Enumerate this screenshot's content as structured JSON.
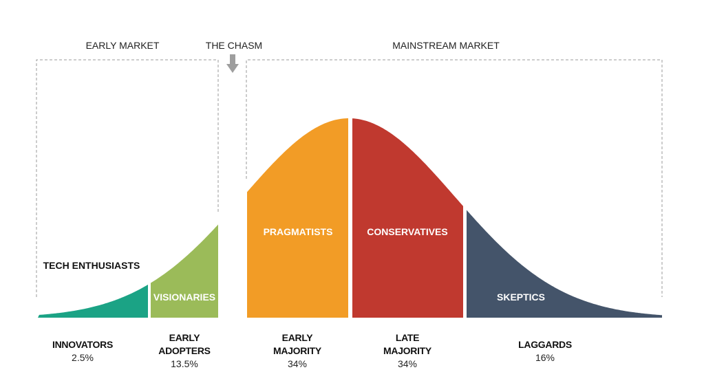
{
  "markets": {
    "early": "EARLY MARKET",
    "chasm": "THE CHASM",
    "mainstream": "MAINSTREAM MARKET"
  },
  "segments": [
    {
      "label": "TECH ENTHUSIASTS",
      "category": "INNOVATORS",
      "category_line2": "",
      "percent": "2.5%",
      "color": "#1ba385"
    },
    {
      "label": "VISIONARIES",
      "category": "EARLY",
      "category_line2": "ADOPTERS",
      "percent": "13.5%",
      "color": "#9bbb59"
    },
    {
      "label": "PRAGMATISTS",
      "category": "EARLY",
      "category_line2": "MAJORITY",
      "percent": "34%",
      "color": "#f29c26"
    },
    {
      "label": "CONSERVATIVES",
      "category": "LATE",
      "category_line2": "MAJORITY",
      "percent": "34%",
      "color": "#c0392f"
    },
    {
      "label": "SKEPTICS",
      "category": "LAGGARDS",
      "category_line2": "",
      "percent": "16%",
      "color": "#44546a"
    }
  ],
  "colors": {
    "dashed_border": "#999999",
    "arrow": "#9e9e9e"
  },
  "icons": {
    "chasm_arrow": "arrow-down-icon"
  }
}
